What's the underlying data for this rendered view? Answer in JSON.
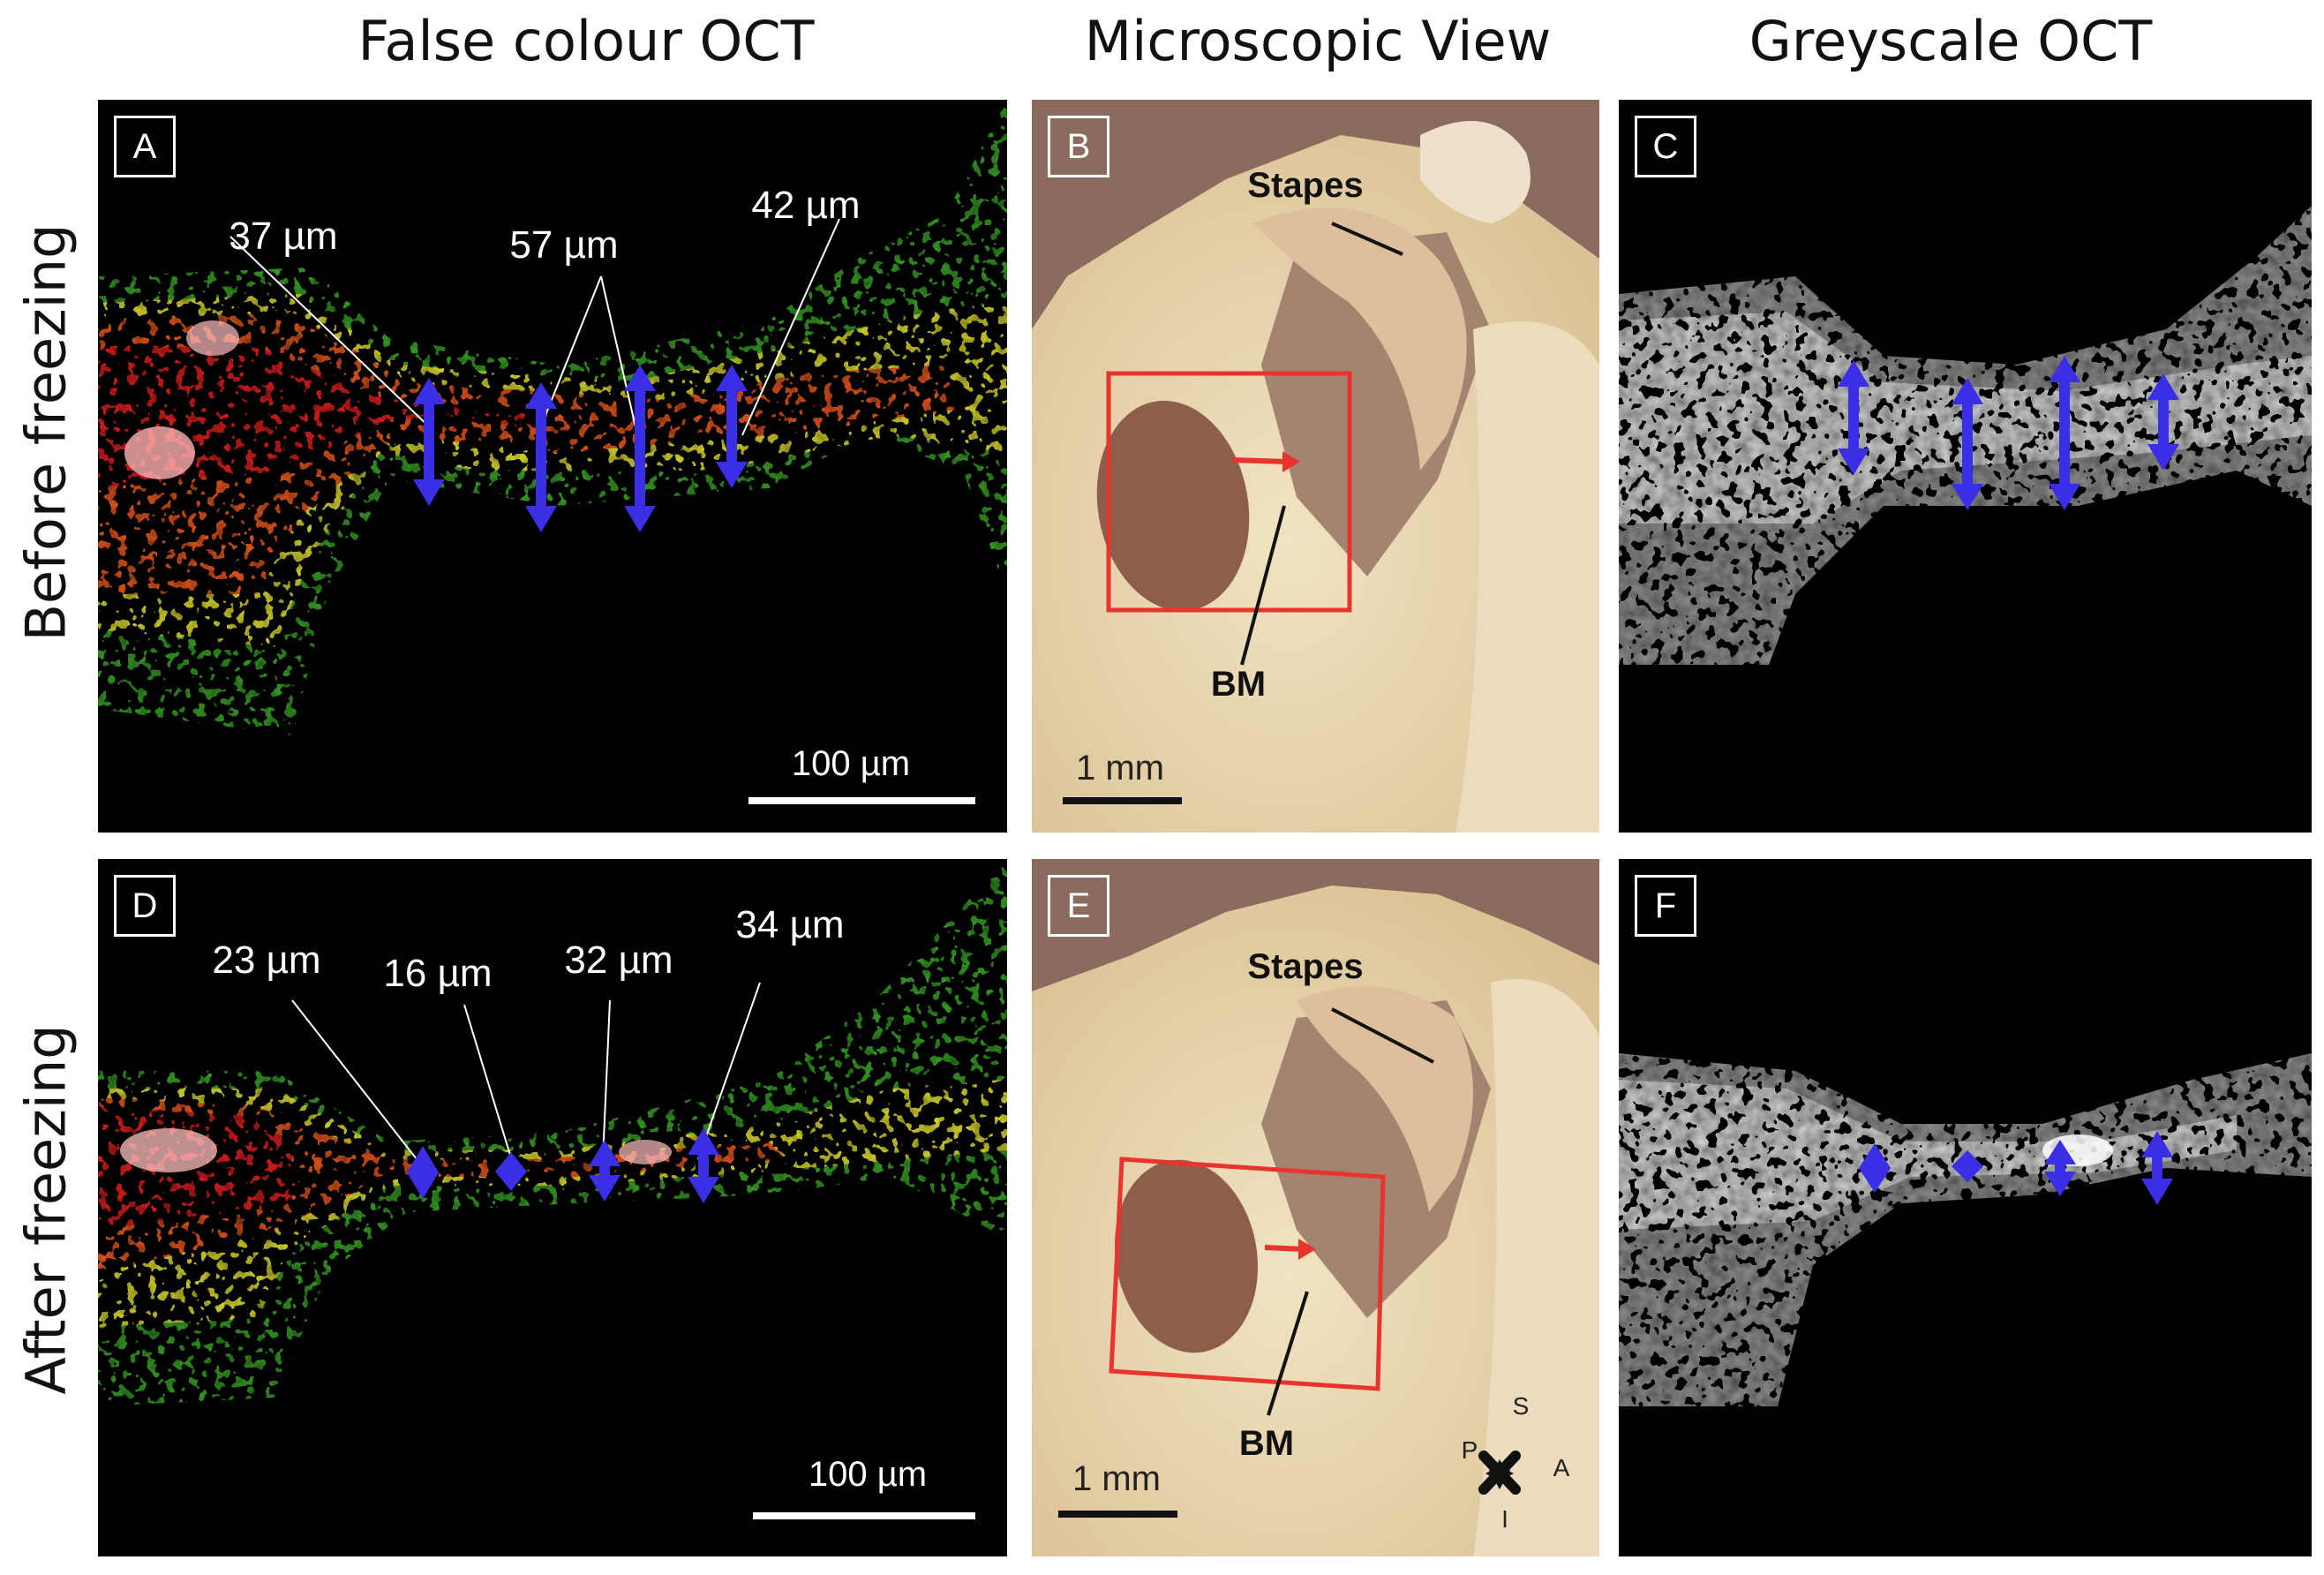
{
  "columns": {
    "false_colour": "False colour OCT",
    "microscopic": "Microscopic View",
    "greyscale": "Greyscale OCT"
  },
  "rows": {
    "before": "Before freezing",
    "after": "After freezing"
  },
  "panels": {
    "A": {
      "letter": "A",
      "thickness_labels": [
        "37 µm",
        "57 µm",
        "42 µm"
      ],
      "scale_bar": "100 µm"
    },
    "B": {
      "letter": "B",
      "stapes": "Stapes",
      "bm": "BM",
      "scale_bar": "1 mm"
    },
    "C": {
      "letter": "C"
    },
    "D": {
      "letter": "D",
      "thickness_labels": [
        "23 µm",
        "16 µm",
        "32 µm",
        "34 µm"
      ],
      "scale_bar": "100 µm"
    },
    "E": {
      "letter": "E",
      "stapes": "Stapes",
      "bm": "BM",
      "scale_bar": "1 mm",
      "compass": {
        "S": "S",
        "P": "P",
        "A": "A",
        "I": "I"
      }
    },
    "F": {
      "letter": "F"
    }
  },
  "colors": {
    "arrow_blue": "#3b2fe6",
    "roi_red": "#e8332f",
    "oct_background": "#000000"
  }
}
